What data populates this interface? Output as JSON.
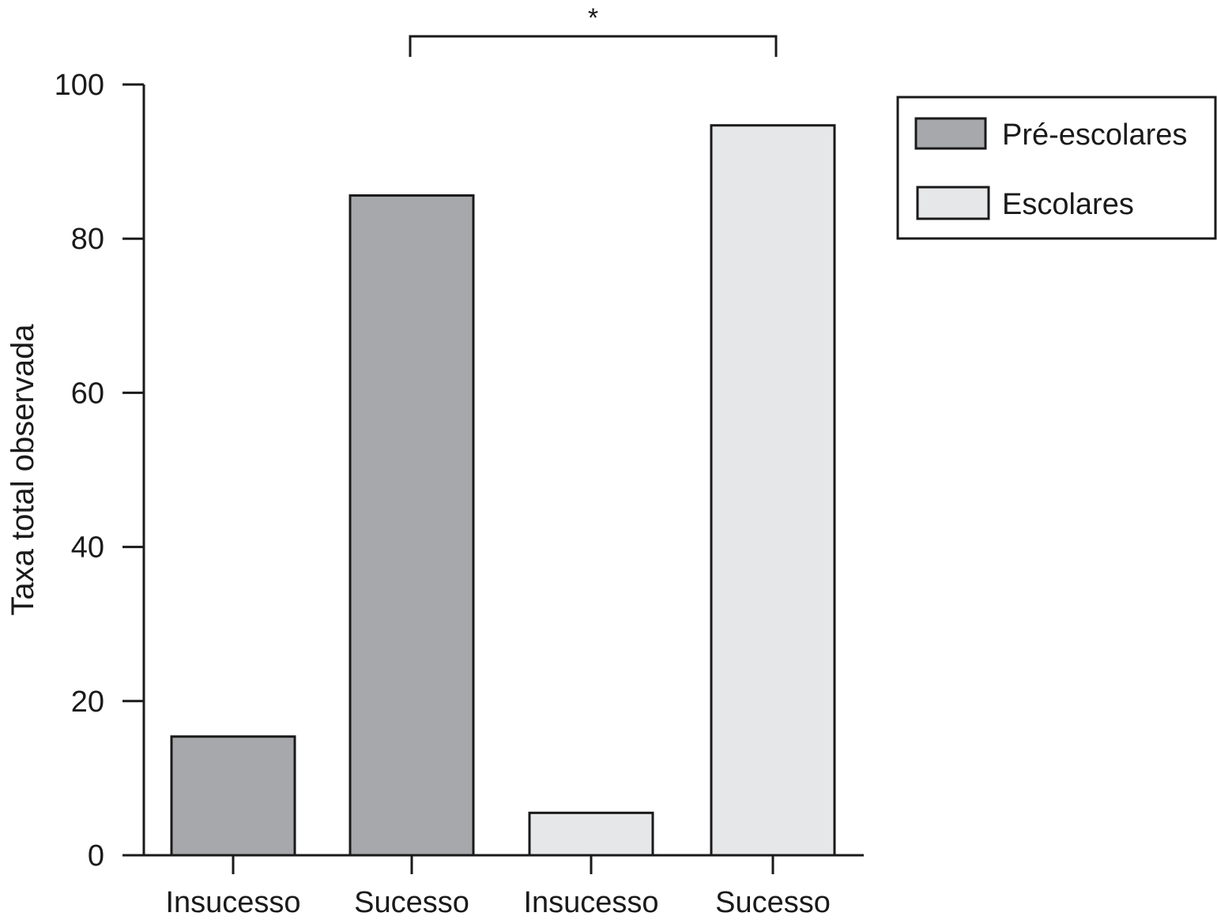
{
  "chart_data": {
    "type": "bar",
    "categories": [
      "Insucesso",
      "Sucesso",
      "Insucesso",
      "Sucesso"
    ],
    "series": [
      {
        "name": "Pré-escolares",
        "color": "#a7a8ab",
        "values": [
          15.4,
          85.6,
          null,
          null
        ]
      },
      {
        "name": "Escolares",
        "color": "#e6e7e8",
        "values": [
          null,
          null,
          5.5,
          94.7
        ]
      }
    ],
    "title": "",
    "xlabel": "",
    "ylabel": "Taxa total observada",
    "ylim": [
      0,
      100
    ],
    "yticks": [
      0,
      20,
      40,
      60,
      80,
      100
    ],
    "grid": false,
    "legend": "top-right",
    "annotation": {
      "text": "*",
      "between": [
        "Sucesso",
        "Sucesso"
      ],
      "type": "significance-bracket"
    }
  }
}
